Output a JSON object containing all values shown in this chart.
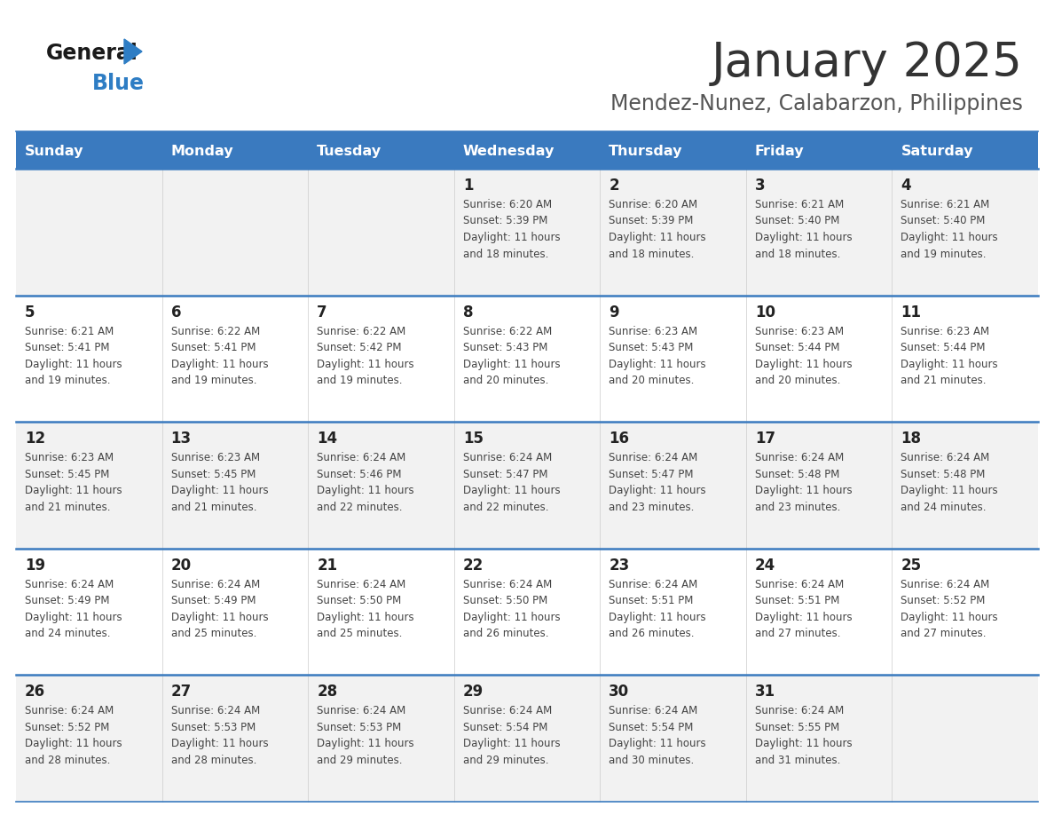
{
  "title": "January 2025",
  "subtitle": "Mendez-Nunez, Calabarzon, Philippines",
  "header_bg_color": "#3a7abf",
  "header_text_color": "#ffffff",
  "title_color": "#333333",
  "subtitle_color": "#555555",
  "days_of_week": [
    "Sunday",
    "Monday",
    "Tuesday",
    "Wednesday",
    "Thursday",
    "Friday",
    "Saturday"
  ],
  "row_bg_even": "#f2f2f2",
  "row_bg_odd": "#ffffff",
  "cell_text_color": "#444444",
  "day_num_color": "#222222",
  "grid_line_color": "#3a7abf",
  "calendar": [
    [
      {
        "day": null,
        "info": null
      },
      {
        "day": null,
        "info": null
      },
      {
        "day": null,
        "info": null
      },
      {
        "day": 1,
        "info": "Sunrise: 6:20 AM\nSunset: 5:39 PM\nDaylight: 11 hours\nand 18 minutes."
      },
      {
        "day": 2,
        "info": "Sunrise: 6:20 AM\nSunset: 5:39 PM\nDaylight: 11 hours\nand 18 minutes."
      },
      {
        "day": 3,
        "info": "Sunrise: 6:21 AM\nSunset: 5:40 PM\nDaylight: 11 hours\nand 18 minutes."
      },
      {
        "day": 4,
        "info": "Sunrise: 6:21 AM\nSunset: 5:40 PM\nDaylight: 11 hours\nand 19 minutes."
      }
    ],
    [
      {
        "day": 5,
        "info": "Sunrise: 6:21 AM\nSunset: 5:41 PM\nDaylight: 11 hours\nand 19 minutes."
      },
      {
        "day": 6,
        "info": "Sunrise: 6:22 AM\nSunset: 5:41 PM\nDaylight: 11 hours\nand 19 minutes."
      },
      {
        "day": 7,
        "info": "Sunrise: 6:22 AM\nSunset: 5:42 PM\nDaylight: 11 hours\nand 19 minutes."
      },
      {
        "day": 8,
        "info": "Sunrise: 6:22 AM\nSunset: 5:43 PM\nDaylight: 11 hours\nand 20 minutes."
      },
      {
        "day": 9,
        "info": "Sunrise: 6:23 AM\nSunset: 5:43 PM\nDaylight: 11 hours\nand 20 minutes."
      },
      {
        "day": 10,
        "info": "Sunrise: 6:23 AM\nSunset: 5:44 PM\nDaylight: 11 hours\nand 20 minutes."
      },
      {
        "day": 11,
        "info": "Sunrise: 6:23 AM\nSunset: 5:44 PM\nDaylight: 11 hours\nand 21 minutes."
      }
    ],
    [
      {
        "day": 12,
        "info": "Sunrise: 6:23 AM\nSunset: 5:45 PM\nDaylight: 11 hours\nand 21 minutes."
      },
      {
        "day": 13,
        "info": "Sunrise: 6:23 AM\nSunset: 5:45 PM\nDaylight: 11 hours\nand 21 minutes."
      },
      {
        "day": 14,
        "info": "Sunrise: 6:24 AM\nSunset: 5:46 PM\nDaylight: 11 hours\nand 22 minutes."
      },
      {
        "day": 15,
        "info": "Sunrise: 6:24 AM\nSunset: 5:47 PM\nDaylight: 11 hours\nand 22 minutes."
      },
      {
        "day": 16,
        "info": "Sunrise: 6:24 AM\nSunset: 5:47 PM\nDaylight: 11 hours\nand 23 minutes."
      },
      {
        "day": 17,
        "info": "Sunrise: 6:24 AM\nSunset: 5:48 PM\nDaylight: 11 hours\nand 23 minutes."
      },
      {
        "day": 18,
        "info": "Sunrise: 6:24 AM\nSunset: 5:48 PM\nDaylight: 11 hours\nand 24 minutes."
      }
    ],
    [
      {
        "day": 19,
        "info": "Sunrise: 6:24 AM\nSunset: 5:49 PM\nDaylight: 11 hours\nand 24 minutes."
      },
      {
        "day": 20,
        "info": "Sunrise: 6:24 AM\nSunset: 5:49 PM\nDaylight: 11 hours\nand 25 minutes."
      },
      {
        "day": 21,
        "info": "Sunrise: 6:24 AM\nSunset: 5:50 PM\nDaylight: 11 hours\nand 25 minutes."
      },
      {
        "day": 22,
        "info": "Sunrise: 6:24 AM\nSunset: 5:50 PM\nDaylight: 11 hours\nand 26 minutes."
      },
      {
        "day": 23,
        "info": "Sunrise: 6:24 AM\nSunset: 5:51 PM\nDaylight: 11 hours\nand 26 minutes."
      },
      {
        "day": 24,
        "info": "Sunrise: 6:24 AM\nSunset: 5:51 PM\nDaylight: 11 hours\nand 27 minutes."
      },
      {
        "day": 25,
        "info": "Sunrise: 6:24 AM\nSunset: 5:52 PM\nDaylight: 11 hours\nand 27 minutes."
      }
    ],
    [
      {
        "day": 26,
        "info": "Sunrise: 6:24 AM\nSunset: 5:52 PM\nDaylight: 11 hours\nand 28 minutes."
      },
      {
        "day": 27,
        "info": "Sunrise: 6:24 AM\nSunset: 5:53 PM\nDaylight: 11 hours\nand 28 minutes."
      },
      {
        "day": 28,
        "info": "Sunrise: 6:24 AM\nSunset: 5:53 PM\nDaylight: 11 hours\nand 29 minutes."
      },
      {
        "day": 29,
        "info": "Sunrise: 6:24 AM\nSunset: 5:54 PM\nDaylight: 11 hours\nand 29 minutes."
      },
      {
        "day": 30,
        "info": "Sunrise: 6:24 AM\nSunset: 5:54 PM\nDaylight: 11 hours\nand 30 minutes."
      },
      {
        "day": 31,
        "info": "Sunrise: 6:24 AM\nSunset: 5:55 PM\nDaylight: 11 hours\nand 31 minutes."
      },
      {
        "day": null,
        "info": null
      }
    ]
  ]
}
